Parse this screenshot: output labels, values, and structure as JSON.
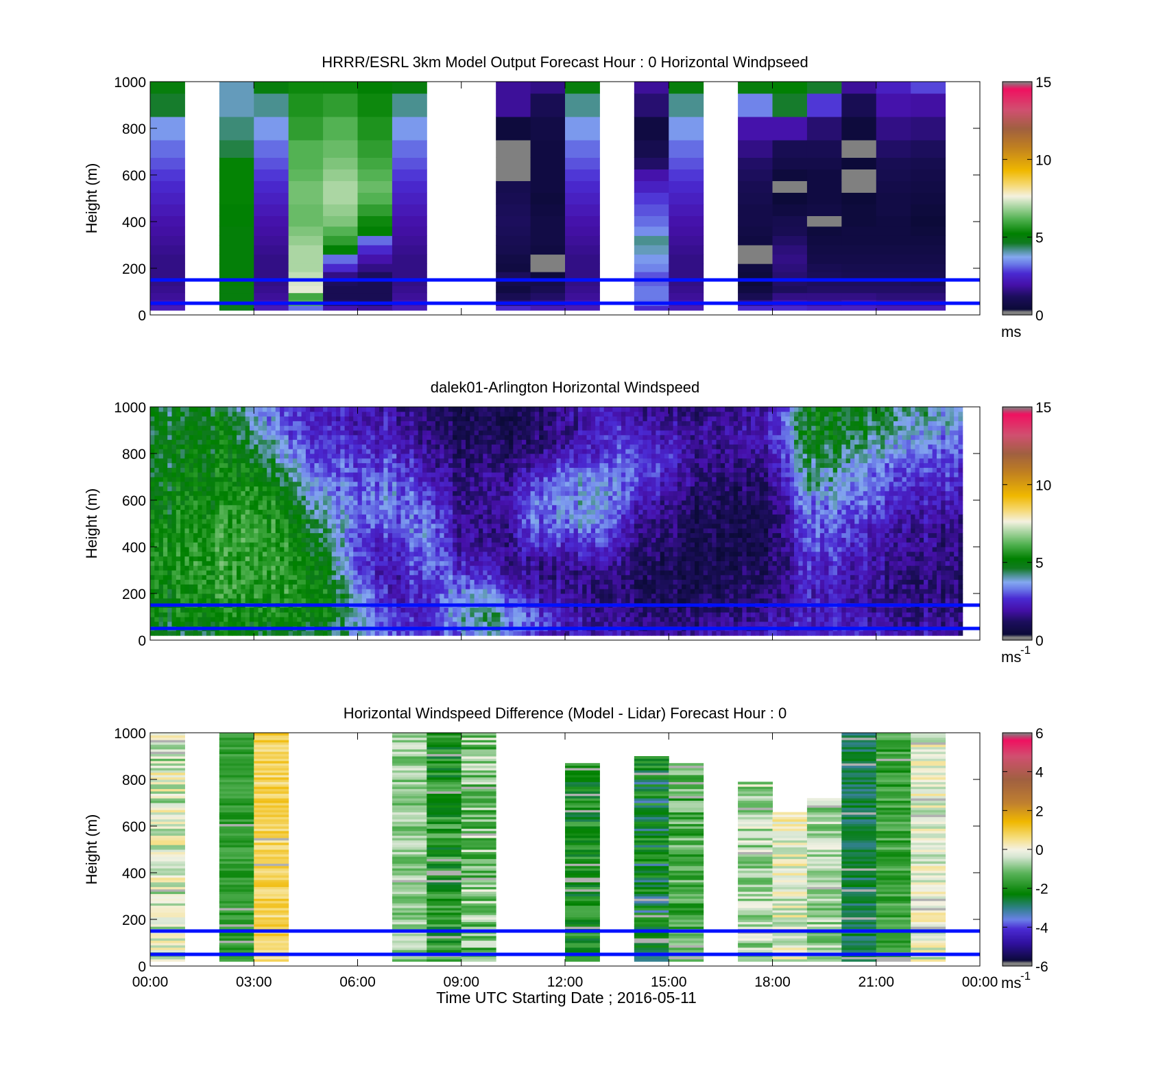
{
  "figure": {
    "xlabel": "Time UTC  Starting Date ; 2016-05-11",
    "hline_color": "#0010ff",
    "hlines_m": [
      150,
      50
    ]
  },
  "chart_data": [
    {
      "type": "heatmap",
      "title": "HRRR/ESRL 3km Model Output   Forecast Hour : 0 Horizontal Windpseed",
      "ylabel": "Height (m)",
      "unit_label": "ms",
      "unit_sup": "",
      "ylim": [
        0,
        1000
      ],
      "yticks": [
        "0",
        "200",
        "400",
        "600",
        "800",
        "1000"
      ],
      "xlim_hours": [
        0,
        24
      ],
      "xtick_labels": [],
      "clim": [
        0,
        15
      ],
      "cbar_ticks": [
        "0",
        "5",
        "10",
        "15"
      ],
      "colormap": "wind",
      "column_width_h": 1.0,
      "gap_after_h": 23.0,
      "level_heights_m": [
        30,
        50,
        80,
        110,
        140,
        170,
        200,
        240,
        280,
        320,
        360,
        400,
        450,
        500,
        550,
        600,
        650,
        700,
        800,
        900,
        1000
      ],
      "columns": [
        {
          "t": 0,
          "v": [
            2.2,
            2.0,
            1.8,
            1.7,
            1.6,
            1.6,
            1.6,
            1.6,
            1.7,
            1.8,
            1.9,
            2.0,
            2.2,
            2.4,
            2.6,
            2.8,
            3.0,
            3.2,
            3.6,
            4.6,
            5.0
          ]
        },
        {
          "t": 2,
          "v": [
            4.8,
            4.9,
            5.0,
            5.0,
            5.1,
            5.1,
            5.1,
            5.1,
            5.1,
            5.1,
            5.1,
            5.2,
            5.2,
            5.3,
            5.3,
            5.3,
            5.3,
            4.5,
            4.3,
            4.0,
            4.0
          ]
        },
        {
          "t": 3,
          "v": [
            2.2,
            2.0,
            1.8,
            1.7,
            1.6,
            1.6,
            1.6,
            1.6,
            1.7,
            1.8,
            1.9,
            2.0,
            2.2,
            2.4,
            2.6,
            2.8,
            3.0,
            3.2,
            3.6,
            4.2,
            5.0
          ]
        },
        {
          "t": 4,
          "v": [
            3.2,
            6.2,
            6.0,
            7.5,
            7.4,
            7.2,
            7.0,
            7.0,
            7.0,
            6.8,
            6.6,
            6.4,
            6.4,
            6.5,
            6.5,
            6.3,
            6.2,
            6.2,
            5.8,
            5.6,
            5.4
          ]
        },
        {
          "t": 5,
          "v": [
            2.0,
            1.3,
            1.0,
            1.0,
            1.2,
            1.6,
            2.6,
            3.2,
            5.2,
            5.8,
            6.2,
            6.6,
            6.8,
            7.0,
            7.0,
            6.8,
            6.6,
            6.4,
            6.2,
            5.8,
            5.4
          ]
        },
        {
          "t": 6,
          "v": [
            1.8,
            1.2,
            1.0,
            1.0,
            1.0,
            1.2,
            1.6,
            2.0,
            2.6,
            3.2,
            5.2,
            5.4,
            5.8,
            6.2,
            6.4,
            6.2,
            6.0,
            5.8,
            5.6,
            5.4,
            5.2
          ]
        },
        {
          "t": 7,
          "v": [
            2.2,
            2.0,
            1.8,
            1.7,
            1.6,
            1.6,
            1.6,
            1.6,
            1.7,
            1.8,
            1.9,
            2.0,
            2.2,
            2.4,
            2.6,
            2.8,
            3.0,
            3.2,
            3.6,
            4.2,
            5.0
          ]
        },
        {
          "t": 10,
          "v": [
            2.6,
            1.4,
            1.0,
            0.6,
            0.8,
            1.2,
            0.6,
            0.7,
            0.9,
            1.0,
            1.1,
            1.2,
            1.1,
            1.0,
            0.9,
            0.3,
            0.0,
            0.2,
            0.5,
            1.8,
            1.8
          ]
        },
        {
          "t": 11,
          "v": [
            2.2,
            1.6,
            1.3,
            1.0,
            0.8,
            0.5,
            0.0,
            0.3,
            0.6,
            0.7,
            0.7,
            0.7,
            0.6,
            0.5,
            0.6,
            0.6,
            0.6,
            0.6,
            0.7,
            1.0,
            1.6
          ]
        },
        {
          "t": 12,
          "v": [
            2.2,
            2.0,
            1.8,
            1.7,
            1.6,
            1.6,
            1.6,
            1.6,
            1.7,
            1.8,
            1.9,
            2.0,
            2.2,
            2.4,
            2.6,
            2.8,
            3.0,
            3.2,
            3.6,
            4.2,
            5.0
          ]
        },
        {
          "t": 14,
          "v": [
            2.6,
            3.2,
            3.3,
            3.3,
            3.1,
            3.0,
            3.4,
            3.6,
            4.0,
            4.2,
            3.5,
            3.2,
            3.0,
            2.8,
            2.4,
            2.0,
            1.3,
            0.9,
            0.6,
            1.4,
            1.8
          ]
        },
        {
          "t": 15,
          "v": [
            2.2,
            2.0,
            1.8,
            1.7,
            1.6,
            1.6,
            1.6,
            1.6,
            1.7,
            1.8,
            1.9,
            2.0,
            2.2,
            2.4,
            2.6,
            2.8,
            3.0,
            3.2,
            3.6,
            4.2,
            5.0
          ]
        },
        {
          "t": 17,
          "v": [
            2.6,
            1.6,
            1.0,
            0.6,
            0.4,
            0.5,
            0.6,
            0.0,
            0.0,
            0.6,
            0.7,
            0.8,
            0.8,
            0.9,
            1.0,
            1.2,
            1.3,
            1.6,
            2.0,
            3.4,
            5.0
          ]
        },
        {
          "t": 18,
          "v": [
            2.6,
            2.0,
            1.6,
            1.2,
            1.3,
            1.4,
            1.5,
            1.6,
            1.5,
            1.3,
            1.0,
            0.9,
            0.6,
            0.4,
            0.3,
            0.5,
            0.8,
            1.0,
            2.0,
            4.6,
            5.2
          ]
        },
        {
          "t": 19,
          "v": [
            2.4,
            1.8,
            1.6,
            1.3,
            1.2,
            1.1,
            1.0,
            0.8,
            0.7,
            0.6,
            0.5,
            0.0,
            0.7,
            0.6,
            0.6,
            0.6,
            0.8,
            1.0,
            1.4,
            2.8,
            4.6
          ]
        },
        {
          "t": 20,
          "v": [
            2.4,
            2.0,
            1.6,
            1.3,
            1.2,
            1.0,
            0.9,
            0.8,
            0.7,
            0.6,
            0.6,
            0.5,
            0.5,
            0.4,
            0.0,
            0.0,
            0.4,
            0.3,
            0.5,
            1.0,
            1.8
          ]
        },
        {
          "t": 21,
          "v": [
            2.2,
            1.8,
            1.5,
            1.3,
            1.2,
            1.0,
            0.9,
            0.8,
            0.7,
            0.6,
            0.6,
            0.6,
            0.7,
            0.7,
            0.8,
            0.9,
            1.0,
            1.3,
            1.6,
            2.0,
            2.4
          ]
        },
        {
          "t": 22,
          "v": [
            2.2,
            1.8,
            1.5,
            1.3,
            1.1,
            1.0,
            0.9,
            0.8,
            0.7,
            0.6,
            0.5,
            0.4,
            0.5,
            0.6,
            0.7,
            0.8,
            0.9,
            1.2,
            1.5,
            1.9,
            2.9
          ]
        }
      ]
    },
    {
      "type": "heatmap",
      "title": "dalek01-Arlington  Horizontal Windspeed",
      "ylabel": "Height (m)",
      "unit_label": "ms",
      "unit_sup": "-1",
      "ylim": [
        0,
        1000
      ],
      "yticks": [
        "0",
        "200",
        "400",
        "600",
        "800",
        "1000"
      ],
      "xlim_hours": [
        0,
        24
      ],
      "xtick_labels": [],
      "clim": [
        0,
        15
      ],
      "cbar_ticks": [
        "0",
        "5",
        "10",
        "15"
      ],
      "colormap": "wind",
      "column_width_h": 0.125,
      "level_heights_m": [
        30,
        100,
        200,
        300,
        400,
        500,
        600,
        700,
        800,
        900,
        1000
      ],
      "hourly_profiles": [
        [
          4.5,
          5.0,
          5.0,
          5.2,
          5.2,
          5.0,
          4.8,
          4.6,
          4.6,
          4.5,
          4.5
        ],
        [
          4.6,
          5.2,
          5.4,
          5.6,
          5.6,
          5.4,
          5.2,
          5.0,
          4.9,
          4.8,
          4.6
        ],
        [
          4.8,
          5.4,
          5.8,
          5.8,
          5.8,
          5.6,
          5.4,
          5.3,
          5.1,
          5.0,
          4.8
        ],
        [
          4.8,
          5.4,
          5.6,
          5.8,
          5.8,
          5.8,
          5.6,
          5.2,
          4.8,
          4.0,
          3.6
        ],
        [
          4.6,
          5.4,
          5.6,
          5.8,
          5.6,
          5.4,
          5.0,
          4.4,
          3.6,
          3.0,
          2.8
        ],
        [
          4.4,
          5.2,
          5.2,
          5.0,
          4.6,
          4.2,
          3.6,
          3.0,
          2.6,
          2.4,
          2.2
        ],
        [
          4.0,
          4.2,
          3.8,
          3.0,
          3.0,
          3.2,
          3.4,
          3.2,
          2.8,
          2.4,
          2.2
        ],
        [
          3.0,
          2.6,
          2.2,
          2.0,
          2.4,
          3.0,
          3.4,
          3.2,
          2.6,
          2.2,
          2.0
        ],
        [
          2.6,
          2.4,
          2.6,
          3.2,
          3.6,
          3.6,
          3.0,
          2.4,
          2.0,
          1.6,
          1.2
        ],
        [
          3.4,
          4.0,
          3.6,
          2.6,
          2.0,
          1.8,
          1.6,
          1.4,
          1.2,
          1.0,
          0.8
        ],
        [
          3.6,
          4.2,
          3.2,
          2.0,
          1.4,
          1.4,
          1.6,
          1.6,
          1.2,
          0.8,
          0.8
        ],
        [
          2.8,
          3.0,
          2.2,
          1.6,
          2.2,
          3.0,
          3.0,
          2.2,
          1.4,
          1.0,
          1.2
        ],
        [
          2.2,
          2.2,
          1.8,
          1.6,
          2.4,
          3.4,
          3.6,
          3.4,
          2.2,
          1.6,
          2.0
        ],
        [
          2.2,
          1.8,
          1.4,
          1.8,
          2.8,
          3.6,
          3.8,
          3.6,
          2.6,
          2.4,
          2.6
        ],
        [
          2.0,
          1.6,
          1.2,
          1.2,
          1.6,
          2.0,
          2.6,
          3.2,
          3.0,
          2.4,
          2.0
        ],
        [
          2.0,
          1.4,
          1.0,
          1.0,
          1.2,
          1.4,
          1.8,
          2.4,
          2.6,
          2.0,
          1.6
        ],
        [
          2.0,
          1.4,
          1.0,
          0.8,
          0.8,
          1.0,
          1.2,
          1.4,
          1.6,
          1.8,
          1.4
        ],
        [
          2.2,
          1.6,
          1.2,
          1.0,
          0.8,
          0.8,
          1.0,
          1.2,
          1.6,
          2.0,
          1.6
        ],
        [
          2.4,
          1.8,
          1.4,
          1.2,
          1.0,
          1.0,
          1.2,
          1.6,
          2.0,
          2.4,
          2.2
        ],
        [
          2.6,
          2.4,
          2.4,
          2.6,
          3.0,
          3.2,
          3.6,
          4.2,
          4.6,
          5.0,
          5.0
        ],
        [
          2.6,
          2.4,
          2.2,
          2.4,
          2.8,
          3.0,
          3.4,
          4.0,
          4.4,
          4.8,
          4.8
        ],
        [
          2.4,
          2.0,
          1.8,
          2.0,
          2.2,
          2.6,
          3.0,
          3.4,
          3.8,
          4.6,
          4.8
        ],
        [
          2.2,
          1.8,
          1.6,
          1.6,
          1.8,
          2.0,
          2.4,
          2.8,
          3.4,
          4.0,
          4.4
        ],
        [
          2.0,
          1.6,
          1.4,
          1.4,
          1.6,
          1.8,
          2.2,
          2.6,
          3.0,
          3.6,
          4.0
        ]
      ]
    },
    {
      "type": "heatmap",
      "title": "Horizontal Windspeed Difference (Model - Lidar) Forecast Hour : 0",
      "ylabel": "Height (m)",
      "xlabel": "Time UTC  Starting Date ; 2016-05-11",
      "unit_label": "ms",
      "unit_sup": "-1",
      "ylim": [
        0,
        1000
      ],
      "yticks": [
        "0",
        "200",
        "400",
        "600",
        "800",
        "1000"
      ],
      "xlim_hours": [
        0,
        24
      ],
      "xtick_labels": [
        "00:00",
        "03:00",
        "06:00",
        "09:00",
        "12:00",
        "15:00",
        "18:00",
        "21:00",
        "00:00"
      ],
      "clim": [
        -6,
        6
      ],
      "cbar_ticks": [
        "-6",
        "-4",
        "-2",
        "0",
        "2",
        "4",
        "6"
      ],
      "colormap": "diff",
      "column_width_h": 1.0,
      "columns": [
        {
          "t": 0,
          "top": 1000,
          "base": -0.3,
          "amp": 0.9
        },
        {
          "t": 2,
          "top": 1000,
          "base": -1.7,
          "amp": 0.4
        },
        {
          "t": 3,
          "top": 1000,
          "base": 0.8,
          "amp": 0.5
        },
        {
          "t": 7,
          "top": 1000,
          "base": -0.8,
          "amp": 0.6
        },
        {
          "t": 8,
          "top": 1000,
          "base": -1.8,
          "amp": 0.8
        },
        {
          "t": 9,
          "top": 1000,
          "base": -1.0,
          "amp": 1.0
        },
        {
          "t": 12,
          "top": 870,
          "base": -2.0,
          "amp": 0.7
        },
        {
          "t": 14,
          "top": 900,
          "base": -2.4,
          "amp": 1.0
        },
        {
          "t": 15,
          "top": 870,
          "base": -1.4,
          "amp": 0.8
        },
        {
          "t": 17,
          "top": 790,
          "base": -0.6,
          "amp": 0.8
        },
        {
          "t": 18,
          "top": 660,
          "base": -0.1,
          "amp": 0.8
        },
        {
          "t": 19,
          "top": 720,
          "base": -0.7,
          "amp": 0.7
        },
        {
          "t": 20,
          "top": 1000,
          "base": -2.7,
          "amp": 0.4
        },
        {
          "t": 21,
          "top": 1000,
          "base": -1.6,
          "amp": 0.6
        },
        {
          "t": 22,
          "top": 1000,
          "base": -0.2,
          "amp": 0.7
        }
      ]
    }
  ]
}
